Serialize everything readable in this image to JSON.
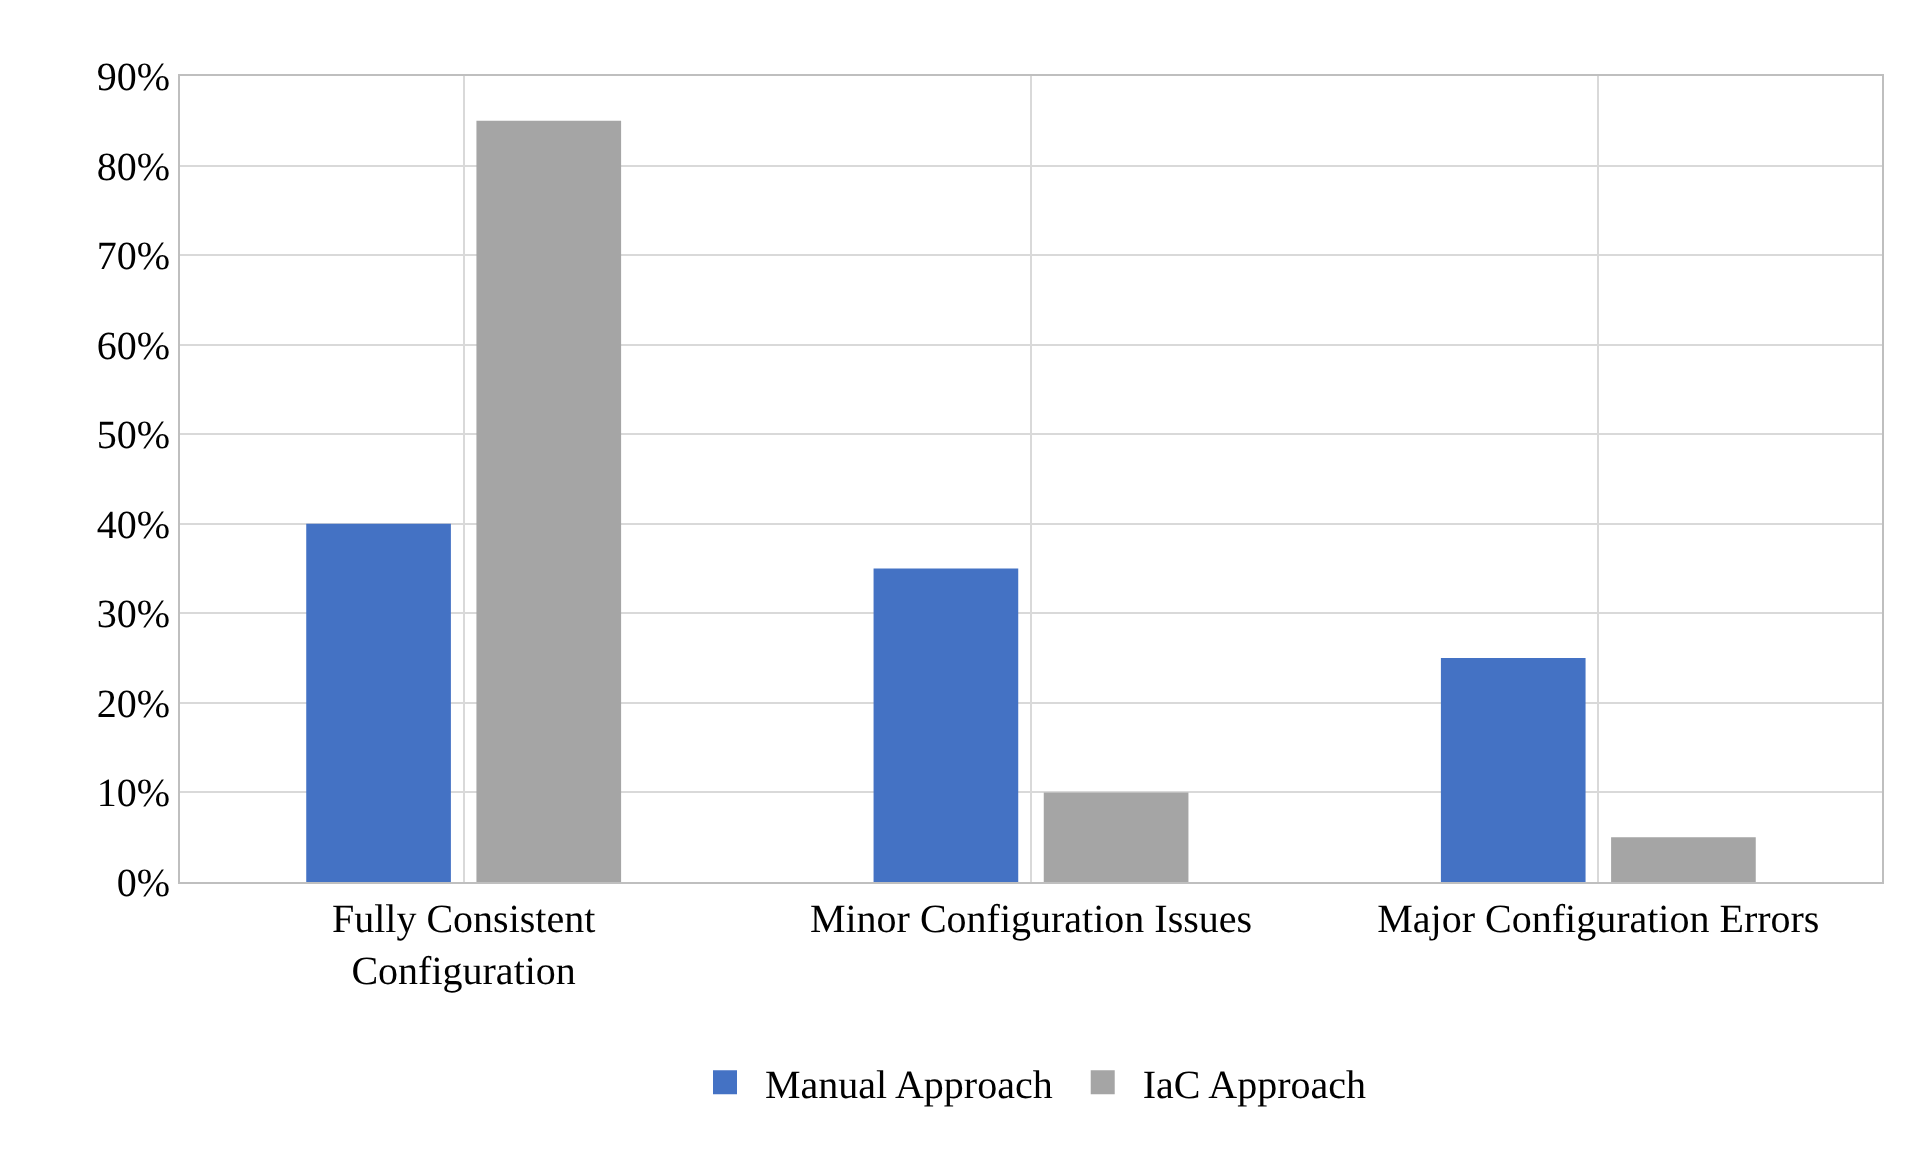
{
  "chart_data": {
    "type": "bar",
    "categories": [
      "Fully Consistent Configuration",
      "Minor Configuration Issues",
      "Major Configuration Errors"
    ],
    "series": [
      {
        "name": "Manual Approach",
        "color": "#4472c4",
        "values": [
          40,
          35,
          25
        ]
      },
      {
        "name": "IaC Approach",
        "color": "#a5a5a5",
        "values": [
          85,
          10,
          5
        ]
      }
    ],
    "ylim": [
      0,
      90
    ],
    "yticks": [
      {
        "value": 0,
        "label": "0%"
      },
      {
        "value": 10,
        "label": "10%"
      },
      {
        "value": 20,
        "label": "20%"
      },
      {
        "value": 30,
        "label": "30%"
      },
      {
        "value": 40,
        "label": "40%"
      },
      {
        "value": 50,
        "label": "50%"
      },
      {
        "value": 60,
        "label": "60%"
      },
      {
        "value": 70,
        "label": "70%"
      },
      {
        "value": 80,
        "label": "80%"
      },
      {
        "value": 90,
        "label": "90%"
      }
    ],
    "grid": true,
    "legend": "bottom"
  }
}
